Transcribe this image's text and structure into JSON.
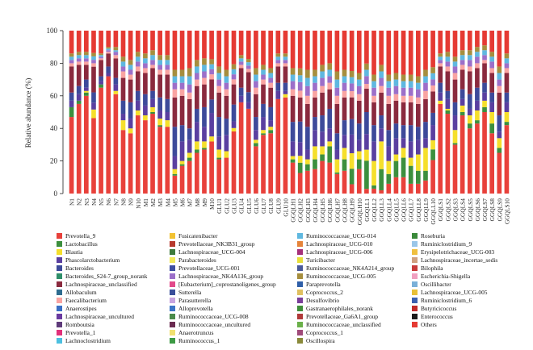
{
  "chart_data": {
    "type": "stacked-bar",
    "title": "",
    "xlabel": "",
    "ylabel": "Relative abundance (%)",
    "ylim": [
      0,
      100
    ],
    "yticks": [
      0,
      20,
      40,
      60,
      80,
      100
    ],
    "grid": false,
    "legend_placement": "bottom",
    "categories": [
      "N1",
      "N2",
      "N3",
      "N4",
      "N5",
      "N6",
      "N7",
      "N8",
      "N9",
      "N10",
      "M1",
      "M2",
      "M3",
      "M4",
      "M5",
      "M6",
      "M7",
      "M8",
      "M9",
      "M10",
      "GLU1",
      "GLU2",
      "GLU3",
      "GLU4",
      "GLU5",
      "GLU6",
      "GLU7",
      "GLU8",
      "GLU9",
      "GLU10",
      "GGQLH1",
      "GGQLH2",
      "GGQLH3",
      "GGQLH4",
      "GGQLH5",
      "GGQLH6",
      "GGQLH7",
      "GGQLH8",
      "GGQLH9",
      "GGQLH10",
      "GGQLL1",
      "GGQLL2",
      "GGQLL3",
      "GGQLL4",
      "GGQLL5",
      "GGQLL6",
      "GGQLL7",
      "GGQLL8",
      "GGQLL9",
      "GGQLL10",
      "GGQLS1",
      "GGQLS2",
      "GGQLS3",
      "GGQLS4",
      "GGQLS5",
      "GGQLS6",
      "GGQLS7",
      "GGQLS8",
      "GGQLS9",
      "GGQLS10"
    ],
    "series": [
      {
        "name": "Prevotella_9",
        "color": "#e8413b",
        "values": [
          47,
          55,
          60,
          44,
          65,
          72,
          61,
          39,
          37,
          48,
          45,
          49,
          41,
          41,
          11,
          17,
          20,
          25,
          27,
          31,
          21,
          22,
          37,
          56,
          51,
          29,
          36,
          37,
          58,
          59,
          19,
          12,
          14,
          15,
          20,
          19,
          12,
          14,
          6,
          15,
          3,
          3,
          2,
          6,
          10,
          10,
          6,
          6,
          8,
          22,
          55,
          49,
          30,
          48,
          40,
          43,
          50,
          37,
          25,
          42
        ]
      },
      {
        "name": "Lactobacillus",
        "color": "#3c8f3e",
        "values": [
          6,
          2,
          2,
          0,
          2,
          0,
          0,
          0,
          0,
          0,
          0,
          1,
          1,
          0,
          1,
          1,
          2,
          2,
          1,
          0,
          1,
          0,
          0,
          0,
          0,
          2,
          1,
          2,
          0,
          0,
          2,
          6,
          4,
          6,
          4,
          10,
          1,
          7,
          10,
          6,
          18,
          2,
          13,
          6,
          10,
          12,
          11,
          8,
          6,
          7,
          0,
          2,
          1,
          2,
          3,
          2,
          3,
          6,
          3,
          2
        ]
      },
      {
        "name": "Blautia",
        "color": "#f5df2c",
        "values": [
          0,
          0,
          1,
          5,
          0,
          0,
          2,
          6,
          3,
          3,
          3,
          3,
          4,
          4,
          3,
          2,
          3,
          5,
          4,
          3,
          5,
          4,
          2,
          0,
          0,
          2,
          2,
          2,
          0,
          2,
          2,
          4,
          3,
          8,
          5,
          3,
          8,
          7,
          10,
          5,
          7,
          15,
          17,
          8,
          4,
          6,
          5,
          10,
          14,
          6,
          2,
          1,
          8,
          4,
          5,
          6,
          4,
          7,
          6,
          6
        ]
      },
      {
        "name": "Phascolarctobacterium",
        "color": "#5a3fa0",
        "values": [
          4,
          4,
          2,
          4,
          2,
          2,
          4,
          4,
          6,
          6,
          6,
          5,
          5,
          5,
          8,
          12,
          8,
          12,
          9,
          14,
          8,
          10,
          4,
          4,
          4,
          6,
          8,
          4,
          5,
          2,
          9,
          8,
          6,
          10,
          9,
          8,
          6,
          8,
          12,
          7,
          10,
          12,
          8,
          9,
          10,
          6,
          10,
          9,
          6,
          10,
          5,
          6,
          9,
          4,
          4,
          6,
          5,
          6,
          4,
          6
        ]
      },
      {
        "name": "Bacteroides",
        "color": "#3d4a9a",
        "values": [
          5,
          5,
          5,
          6,
          3,
          4,
          4,
          8,
          10,
          6,
          7,
          5,
          8,
          8,
          18,
          10,
          7,
          8,
          12,
          8,
          12,
          10,
          10,
          5,
          6,
          8,
          8,
          8,
          5,
          5,
          12,
          12,
          14,
          8,
          10,
          12,
          10,
          9,
          10,
          10,
          14,
          10,
          8,
          10,
          9,
          8,
          10,
          8,
          10,
          8,
          6,
          5,
          8,
          6,
          9,
          8,
          6,
          6,
          10,
          6
        ]
      },
      {
        "name": "Lachnospiraceae_unclassified",
        "color": "#8a2a3e",
        "values": [
          16,
          13,
          9,
          15,
          10,
          8,
          12,
          14,
          14,
          12,
          13,
          14,
          14,
          15,
          18,
          18,
          18,
          14,
          14,
          12,
          15,
          14,
          12,
          12,
          12,
          14,
          12,
          12,
          10,
          10,
          16,
          14,
          14,
          12,
          14,
          12,
          18,
          14,
          14,
          14,
          15,
          14,
          14,
          16,
          14,
          14,
          14,
          14,
          14,
          14,
          10,
          12,
          14,
          12,
          14,
          12,
          12,
          12,
          14,
          12
        ]
      },
      {
        "name": "Faecalibacterium",
        "color": "#f9a4a2",
        "values": [
          2,
          2,
          2,
          2,
          1,
          1,
          2,
          4,
          3,
          3,
          3,
          2,
          3,
          3,
          5,
          4,
          4,
          4,
          4,
          3,
          4,
          4,
          3,
          2,
          2,
          4,
          3,
          3,
          2,
          2,
          4,
          4,
          5,
          4,
          4,
          4,
          5,
          4,
          4,
          4,
          3,
          4,
          4,
          5,
          4,
          4,
          4,
          4,
          5,
          4,
          2,
          3,
          4,
          3,
          3,
          3,
          2,
          3,
          4,
          3
        ]
      },
      {
        "name": "Lachnospiraceae_NK4A136_group",
        "color": "#9c6fc9",
        "values": [
          2,
          2,
          2,
          2,
          1,
          1,
          2,
          3,
          3,
          3,
          3,
          3,
          3,
          3,
          4,
          4,
          5,
          4,
          4,
          3,
          4,
          4,
          3,
          2,
          2,
          4,
          3,
          3,
          2,
          2,
          5,
          5,
          6,
          5,
          5,
          4,
          5,
          5,
          5,
          5,
          5,
          5,
          5,
          5,
          5,
          5,
          5,
          5,
          5,
          4,
          2,
          3,
          4,
          3,
          4,
          4,
          3,
          4,
          4,
          3
        ]
      },
      {
        "name": "Ruminococcaceae_UCG-014",
        "color": "#5fb8e0",
        "values": [
          2,
          2,
          2,
          2,
          1,
          1,
          1,
          3,
          3,
          3,
          3,
          3,
          3,
          3,
          4,
          4,
          5,
          4,
          4,
          3,
          4,
          4,
          3,
          2,
          2,
          4,
          3,
          3,
          2,
          2,
          4,
          4,
          5,
          4,
          4,
          4,
          5,
          4,
          4,
          4,
          4,
          4,
          4,
          4,
          4,
          4,
          4,
          4,
          4,
          4,
          2,
          3,
          3,
          3,
          3,
          3,
          3,
          3,
          4,
          3
        ]
      },
      {
        "name": "Ruminococcaceae_UCG-005",
        "color": "#a68e3e",
        "values": [
          2,
          2,
          2,
          2,
          1,
          1,
          2,
          3,
          3,
          3,
          3,
          3,
          3,
          3,
          4,
          4,
          5,
          4,
          4,
          3,
          4,
          4,
          3,
          2,
          2,
          4,
          3,
          3,
          2,
          2,
          4,
          4,
          5,
          4,
          4,
          4,
          5,
          4,
          4,
          4,
          4,
          4,
          4,
          4,
          4,
          4,
          4,
          4,
          4,
          4,
          2,
          3,
          3,
          3,
          3,
          3,
          3,
          3,
          4,
          3
        ]
      },
      {
        "name": "Others",
        "color": "#e53a33",
        "values": [
          14,
          13,
          13,
          13,
          14,
          10,
          10,
          16,
          18,
          13,
          14,
          12,
          15,
          15,
          24,
          24,
          23,
          18,
          17,
          17,
          22,
          24,
          20,
          15,
          17,
          23,
          21,
          23,
          14,
          14,
          23,
          22,
          24,
          24,
          21,
          20,
          25,
          24,
          26,
          26,
          21,
          27,
          21,
          27,
          26,
          27,
          27,
          28,
          24,
          24,
          14,
          13,
          16,
          12,
          12,
          10,
          9,
          13,
          22,
          14
        ]
      }
    ],
    "legend_entries": [
      "Prevotella_9",
      "Lactobacillus",
      "Blautia",
      "Phascolarctobacterium",
      "Bacteroides",
      "Bacteroides_S24-7_group_norank",
      "Lachnospiraceae_unclassified",
      "Allobaculum",
      "Faecalibacterium",
      "Anaerostipes",
      "Lachnospiraceae_uncultured",
      "Romboutsia",
      "Prevotella_1",
      "Lachnoclostridium",
      "Fusicatenibacter",
      "Prevotellaceae_NK3B31_group",
      "Lachnospiraceae_UCG-004",
      "Parabacteroides",
      "Prevotellaceae_UCG-001",
      "Lachnospiraceae_NK4A136_group",
      "[Eubacterium]_coprostanoligenes_group",
      "Sutterella",
      "Parasutterella",
      "Alloprevotella",
      "Ruminococcaceae_UCG-008",
      "Ruminococcaceae_uncultured",
      "Anaerotruncus",
      "Ruminococcus_1",
      "Ruminococcaceae_UCG-014",
      "Lachnospiraceae_UCG-010",
      "Lachnospiraceae_UCG-006",
      "Turicibacter",
      "Ruminococcaceae_NK4A214_group",
      "Ruminococcaceae_UCG-005",
      "Paraprevotella",
      "Coprococcus_2",
      "Desulfovibrio",
      "Gastranaerophilales_norank",
      "Prevotellaceae_Ga6A1_group",
      "Ruminococcaceae_unclassified",
      "Coprococcus_1",
      "Oscillospira",
      "Roseburia",
      "Ruminiclostridium_9",
      "Erysipelotrichaceae_UCG-003",
      "Lachnospiraceae_incertae_sedis",
      "Bilophila",
      "Escherichia-Shigella",
      "Oscillibacter",
      "Lachnospiraceae_UCG-005",
      "Ruminiclostridium_6",
      "Butyricicoccus",
      "Enterococcus",
      "Others"
    ],
    "legend_colors": [
      "#e8413b",
      "#3c8f3e",
      "#f5df2c",
      "#5a3fa0",
      "#3d4a9a",
      "#2f8f6a",
      "#8a2a3e",
      "#2e6c8f",
      "#f9a4a2",
      "#3a6fc4",
      "#6a3aa0",
      "#5e3a7a",
      "#e2307a",
      "#4cc0e0",
      "#f2c232",
      "#b73a2e",
      "#3e7a3c",
      "#f3ea5a",
      "#3d4ea0",
      "#9c6fc9",
      "#e24a8a",
      "#3a4f9a",
      "#c7a4e0",
      "#3a74c6",
      "#4a8a4a",
      "#6a2a50",
      "#f0e070",
      "#3c9a44",
      "#5fb8e0",
      "#e6843a",
      "#a6307a",
      "#e8df3a",
      "#4a5a9a",
      "#a68e3e",
      "#2f5fa8",
      "#e0c060",
      "#7a3f9a",
      "#3f8f3a",
      "#b03a3a",
      "#6ab04a",
      "#a04a7a",
      "#8a8a3a",
      "#3a8a3a",
      "#9ac6e8",
      "#f0c040",
      "#d0a080",
      "#c83a3a",
      "#f0a0c0",
      "#7ab0d8",
      "#e8c038",
      "#3a60b0",
      "#c02a2a",
      "#1a1a1a",
      "#e53a33"
    ]
  }
}
